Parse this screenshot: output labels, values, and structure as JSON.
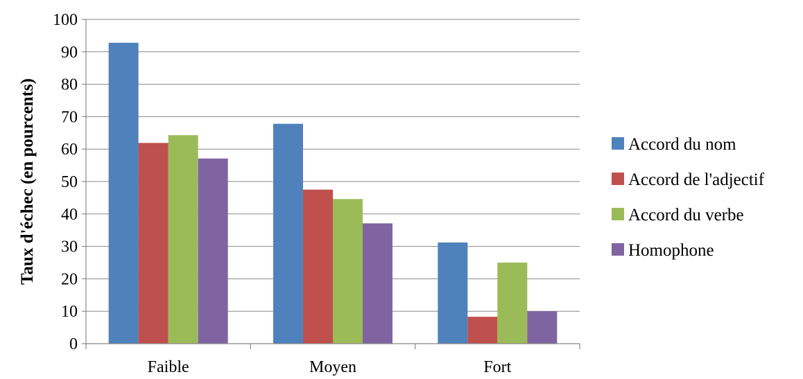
{
  "chart_data": {
    "type": "bar",
    "categories": [
      "Faible",
      "Moyen",
      "Fort"
    ],
    "series": [
      {
        "name": "Accord du nom",
        "values": [
          92.8,
          67.8,
          31.2
        ],
        "color": "#4F81BD"
      },
      {
        "name": "Accord de l'adjectif",
        "values": [
          61.9,
          47.5,
          8.3
        ],
        "color": "#C0504D"
      },
      {
        "name": "Accord du verbe",
        "values": [
          64.3,
          44.6,
          25.0
        ],
        "color": "#9BBB59"
      },
      {
        "name": "Homophone",
        "values": [
          57.1,
          37.1,
          10.0
        ],
        "color": "#8064A2"
      }
    ],
    "ylabel": "Taux d'échec (en pourcents)",
    "ylim": [
      0,
      100
    ],
    "yticks": [
      0,
      10,
      20,
      30,
      40,
      50,
      60,
      70,
      80,
      90,
      100
    ],
    "grid": true,
    "legend_position": "right"
  }
}
